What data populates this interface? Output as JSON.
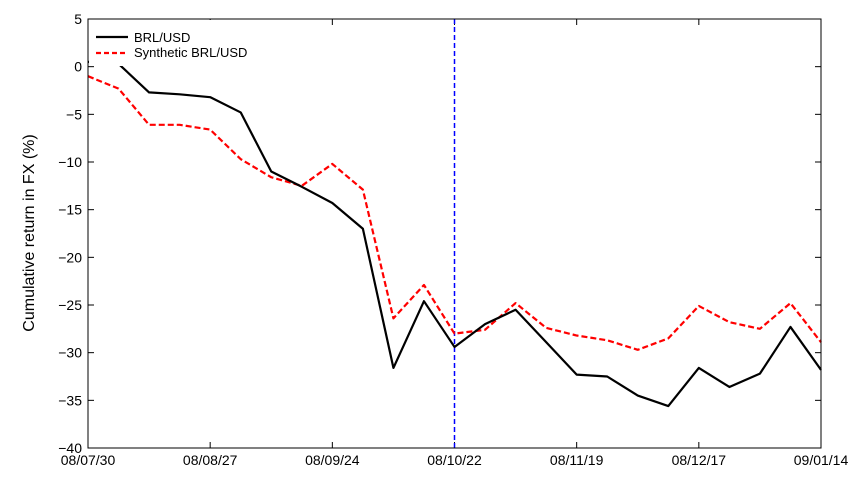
{
  "chart_data": {
    "type": "line",
    "title": "",
    "xlabel": "",
    "ylabel": "Cumulative return in FX (%)",
    "ylim": [
      -40,
      5
    ],
    "yticks": [
      5,
      0,
      -5,
      -10,
      -15,
      -20,
      -25,
      -30,
      -35,
      -40
    ],
    "ytick_labels": [
      "5",
      "0",
      "−5",
      "−10",
      "−15",
      "−20",
      "−25",
      "−30",
      "−35",
      "−40"
    ],
    "x_dates": [
      "08/07/30",
      "08/08/06",
      "08/08/13",
      "08/08/20",
      "08/08/27",
      "08/09/03",
      "08/09/10",
      "08/09/17",
      "08/09/24",
      "08/10/01",
      "08/10/08",
      "08/10/15",
      "08/10/22",
      "08/10/29",
      "08/11/05",
      "08/11/12",
      "08/11/19",
      "08/11/26",
      "08/12/03",
      "08/12/10",
      "08/12/17",
      "08/12/24",
      "08/12/31",
      "09/01/07",
      "09/01/14"
    ],
    "xticks": [
      "08/07/30",
      "08/08/27",
      "08/09/24",
      "08/10/22",
      "08/11/19",
      "08/12/17",
      "09/01/14"
    ],
    "vline": "08/10/22",
    "grid": false,
    "legend_position": "top-left",
    "series": [
      {
        "name": "BRL/USD",
        "color": "#000000",
        "style": "solid",
        "values": [
          0.5,
          0.3,
          -2.7,
          -2.9,
          -3.2,
          -4.8,
          -11.0,
          -12.6,
          -14.3,
          -17.0,
          -31.6,
          -24.6,
          -29.4,
          -27.0,
          -25.5,
          -28.9,
          -32.3,
          -32.5,
          -34.5,
          -35.6,
          -31.6,
          -33.6,
          -32.2,
          -27.3,
          -31.8
        ]
      },
      {
        "name": "Synthetic BRL/USD",
        "color": "#ff0000",
        "style": "dashed",
        "values": [
          -1.0,
          -2.3,
          -6.1,
          -6.1,
          -6.6,
          -9.7,
          -11.6,
          -12.5,
          -10.2,
          -12.9,
          -26.4,
          -22.9,
          -28.0,
          -27.6,
          -24.8,
          -27.4,
          -28.2,
          -28.7,
          -29.7,
          -28.5,
          -25.1,
          -26.8,
          -27.5,
          -24.8,
          -28.9
        ]
      }
    ]
  },
  "colors": {
    "vline": "#0000ff"
  }
}
